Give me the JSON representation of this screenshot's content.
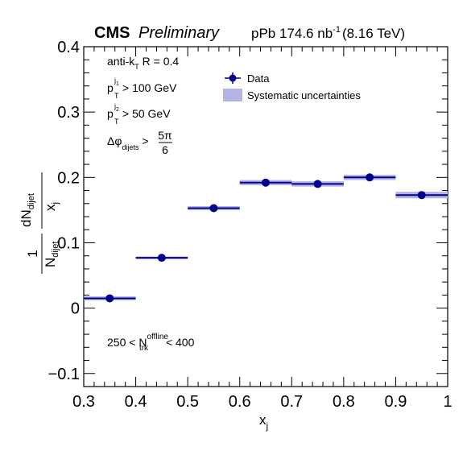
{
  "chart_data": {
    "type": "scatter",
    "header": {
      "experiment": "CMS",
      "status": "Preliminary",
      "dataset_prefix": "pPb 174.6 nb",
      "dataset_exp": "-1",
      "energy": "(8.16 TeV)"
    },
    "xlabel": "x",
    "xlabel_sub": "j",
    "ylabel_prefix": "1",
    "ylabel_n": "N",
    "ylabel_n_sub": "dijet",
    "ylabel_dn": "dN",
    "ylabel_dn_sub": "dijet",
    "ylabel_dx": "x",
    "ylabel_dx_sub": "j",
    "xlim": [
      0.3,
      1.0
    ],
    "ylim": [
      -0.12,
      0.4
    ],
    "x_ticks": [
      0.3,
      0.4,
      0.5,
      0.6,
      0.7,
      0.8,
      0.9,
      1.0
    ],
    "x_tick_labels": [
      "0.3",
      "0.4",
      "0.5",
      "0.6",
      "0.7",
      "0.8",
      "0.9",
      "1"
    ],
    "y_ticks": [
      -0.1,
      0,
      0.1,
      0.2,
      0.3,
      0.4
    ],
    "y_tick_labels": [
      "−0.1",
      "0",
      "0.1",
      "0.2",
      "0.3",
      "0.4"
    ],
    "grid": false,
    "legend_position": "top-center",
    "legend": [
      {
        "label": "Data"
      },
      {
        "label": "Systematic uncertainties"
      }
    ],
    "annotations": {
      "jet_algo_a": "anti-k",
      "jet_algo_sub": "T",
      "jet_algo_b": " R = 0.4",
      "pt1_p": "p",
      "pt1_sup": "j",
      "pt1_sup_sub": "1",
      "pt1_sub": "T",
      "pt1_cut": " > 100 GeV",
      "pt2_p": "p",
      "pt2_sup": "j",
      "pt2_sup_sub": "2",
      "pt2_sub": "T",
      "pt2_cut": " > 50 GeV",
      "dphi_sym": "Δφ",
      "dphi_sub": "dijets",
      "dphi_gt": " > ",
      "dphi_num": "5π",
      "dphi_den": "6",
      "mult_lo": "250 < N",
      "mult_sup": "offline",
      "mult_sub": "trk",
      "mult_hi": " < 400"
    },
    "series": [
      {
        "name": "Data",
        "x": [
          0.35,
          0.45,
          0.55,
          0.65,
          0.75,
          0.85,
          0.95
        ],
        "x_err": [
          0.05,
          0.05,
          0.05,
          0.05,
          0.05,
          0.05,
          0.05
        ],
        "y": [
          0.015,
          0.077,
          0.153,
          0.192,
          0.19,
          0.2,
          0.173
        ],
        "syst": [
          0.003,
          0.002,
          0.003,
          0.004,
          0.004,
          0.004,
          0.005
        ]
      }
    ],
    "colors": {
      "data": "#00008b",
      "syst_band": "#b3b3e6"
    }
  }
}
